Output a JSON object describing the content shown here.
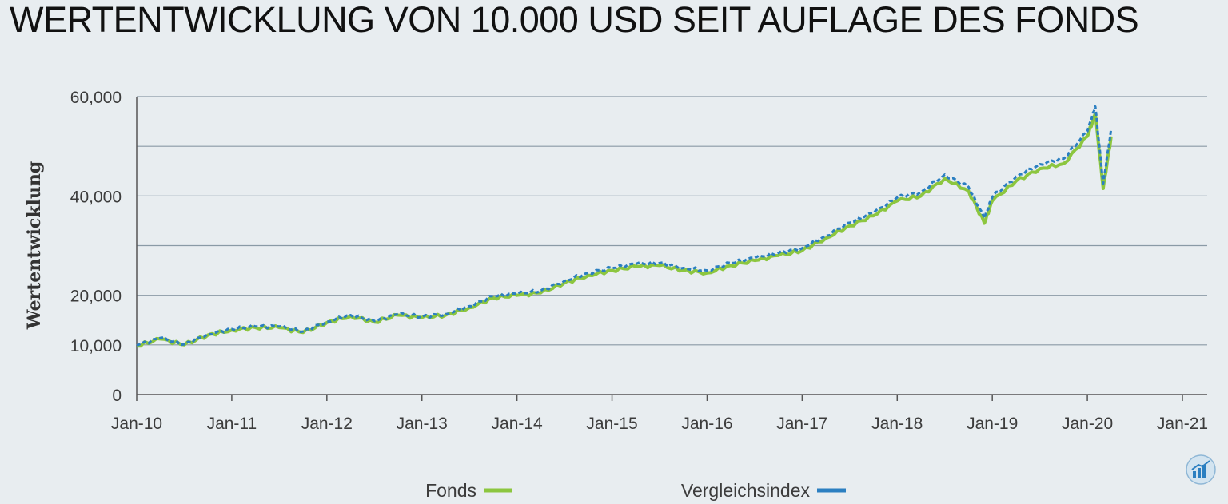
{
  "title": "WERTENTWICKLUNG VON 10.000 USD SEIT AUFLAGE DES FONDS",
  "icon": "chart-growth-icon",
  "chart_data": {
    "type": "line",
    "title": "WERTENTWICKLUNG VON 10.000 USD SEIT AUFLAGE DES FONDS",
    "xlabel": "",
    "ylabel": "Wertentwicklung",
    "x_ticks": [
      "Jan-10",
      "Jan-11",
      "Jan-12",
      "Jan-13",
      "Jan-14",
      "Jan-15",
      "Jan-16",
      "Jan-17",
      "Jan-18",
      "Jan-19",
      "Jan-20",
      "Jan-21"
    ],
    "y_ticks": [
      "0",
      "10,000",
      "20,000",
      "",
      "40,000",
      "",
      "60,000"
    ],
    "ylim": [
      0,
      60000
    ],
    "xlim": [
      "2010-01",
      "2021-01"
    ],
    "grid": true,
    "legend_position": "bottom",
    "x": [
      "2010-01",
      "2010-04",
      "2010-07",
      "2010-10",
      "2011-01",
      "2011-04",
      "2011-07",
      "2011-10",
      "2012-01",
      "2012-04",
      "2012-07",
      "2012-10",
      "2013-01",
      "2013-04",
      "2013-07",
      "2013-10",
      "2014-01",
      "2014-04",
      "2014-07",
      "2014-10",
      "2015-01",
      "2015-04",
      "2015-07",
      "2015-10",
      "2016-01",
      "2016-04",
      "2016-07",
      "2016-10",
      "2017-01",
      "2017-04",
      "2017-07",
      "2017-10",
      "2018-01",
      "2018-04",
      "2018-07",
      "2018-10",
      "2018-12",
      "2019-01",
      "2019-04",
      "2019-07",
      "2019-10",
      "2020-01",
      "2020-02",
      "2020-03",
      "2020-04"
    ],
    "series": [
      {
        "name": "Fonds",
        "color": "#8cc63f",
        "values": [
          9800,
          11200,
          10000,
          12000,
          13000,
          13500,
          13500,
          12500,
          14500,
          15800,
          14600,
          16000,
          15500,
          16000,
          17500,
          19500,
          20000,
          20500,
          22500,
          24000,
          25000,
          25800,
          26000,
          25000,
          24500,
          26000,
          27000,
          28000,
          29000,
          31500,
          34000,
          36000,
          39000,
          40000,
          43500,
          41000,
          34500,
          39000,
          43000,
          45500,
          46500,
          52000,
          56500,
          41500,
          52000
        ]
      },
      {
        "name": "Vergleichsindex",
        "color": "#2b7fc1",
        "values": [
          9900,
          11400,
          10100,
          12200,
          13200,
          13700,
          13700,
          12700,
          14700,
          16000,
          14800,
          16200,
          15700,
          16200,
          17800,
          19800,
          20300,
          20900,
          22900,
          24500,
          25500,
          26300,
          26500,
          25500,
          25000,
          26500,
          27500,
          28500,
          29500,
          32000,
          34600,
          36600,
          39700,
          40800,
          44300,
          41800,
          35500,
          39800,
          43900,
          46400,
          47500,
          53000,
          58000,
          42500,
          53500
        ]
      }
    ]
  }
}
